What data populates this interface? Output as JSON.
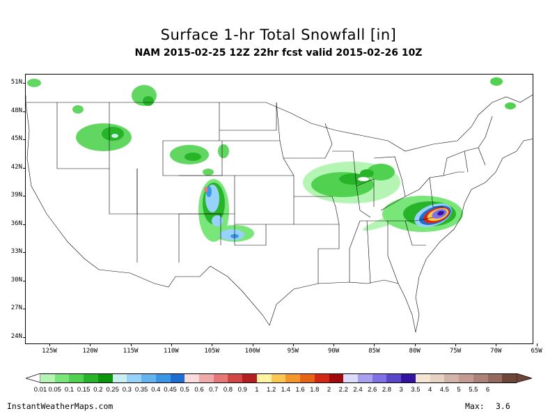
{
  "title": "Surface 1-hr Total Snowfall [in]",
  "subtitle": "NAM 2015-02-25 12Z 22hr fcst valid 2015-02-26 10Z",
  "lat_labels": [
    "51N",
    "48N",
    "45N",
    "42N",
    "39N",
    "36N",
    "33N",
    "30N",
    "27N",
    "24N"
  ],
  "lon_labels": [
    "125W",
    "120W",
    "115W",
    "110W",
    "105W",
    "100W",
    "95W",
    "90W",
    "85W",
    "80W",
    "75W",
    "70W",
    "65W"
  ],
  "colorbar": {
    "colors": [
      "#b4f5b4",
      "#78e678",
      "#50d250",
      "#28b428",
      "#0a960a",
      "#c8f0f0",
      "#96d2fa",
      "#64b4f0",
      "#3c96e6",
      "#1e6ed2",
      "#fadcdc",
      "#f0aaaa",
      "#e67878",
      "#d24646",
      "#b41e1e",
      "#fff5a0",
      "#fac850",
      "#f59628",
      "#e66414",
      "#d22814",
      "#a00a0a",
      "#dcdcfa",
      "#aaa0f0",
      "#8270e6",
      "#5a46c8",
      "#3214a0",
      "#f5e6d2",
      "#e6d2c3",
      "#d2b4aa",
      "#c39b91",
      "#aa8278",
      "#96695f",
      "#6e4637"
    ],
    "labels": [
      "0.01",
      "0.05",
      "0.1",
      "0.15",
      "0.2",
      "0.25",
      "0.3",
      "0.35",
      "0.4",
      "0.45",
      "0.5",
      "0.6",
      "0.7",
      "0.8",
      "0.9",
      "1",
      "1.2",
      "1.4",
      "1.6",
      "1.8",
      "2",
      "2.2",
      "2.4",
      "2.6",
      "2.8",
      "3",
      "3.5",
      "4",
      "4.5",
      "5",
      "5.5",
      "6"
    ]
  },
  "footer": {
    "site": "InstantWeatherMaps.com",
    "max_label": "Max:",
    "max_value": "3.6"
  },
  "legend_units": "in"
}
